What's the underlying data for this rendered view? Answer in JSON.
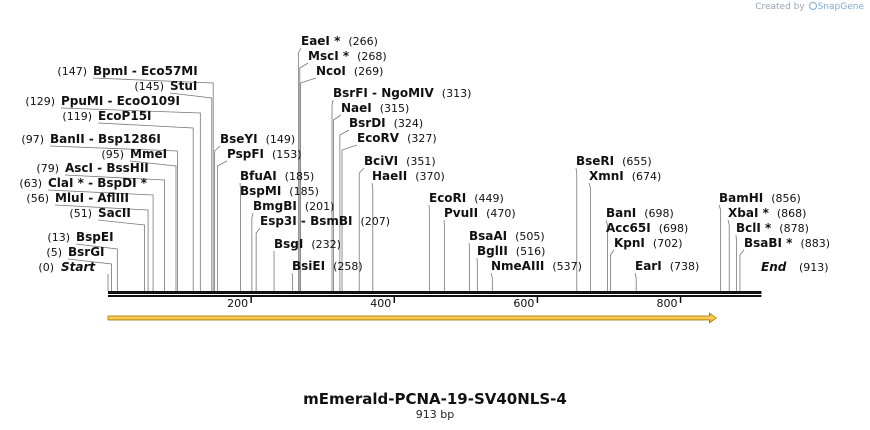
{
  "app_credit": {
    "created_by": "Created by",
    "brand": "SnapGene"
  },
  "sequence": {
    "name": "mEmerald-PCNA-19-SV40NLS-4",
    "length_label": "913 bp",
    "length": 913
  },
  "ends": {
    "start": {
      "label": "Start",
      "pos": 0
    },
    "end": {
      "label": "End",
      "pos": 913
    }
  },
  "ticks": [
    200,
    400,
    600,
    800
  ],
  "feature": {
    "name": "forward-arrow",
    "start": 0,
    "end": 850,
    "color": "#f2a900"
  },
  "enzymes": [
    {
      "name": "BsrGI",
      "pos": 5
    },
    {
      "name": "BspEI",
      "pos": 13
    },
    {
      "name": "SacII",
      "pos": 51
    },
    {
      "name": "MluI - AflIII",
      "pos": 56
    },
    {
      "name": "ClaI * - BspDI *",
      "pos": 63
    },
    {
      "name": "AscI - BssHII",
      "pos": 79
    },
    {
      "name": "MmeI",
      "pos": 95
    },
    {
      "name": "BanII - Bsp1286I",
      "pos": 97
    },
    {
      "name": "EcoP15I",
      "pos": 119
    },
    {
      "name": "PpuMI - EcoO109I",
      "pos": 129
    },
    {
      "name": "StuI",
      "pos": 145
    },
    {
      "name": "BpmI - Eco57MI",
      "pos": 147
    },
    {
      "name": "BseYI",
      "pos": 149
    },
    {
      "name": "PspFI",
      "pos": 153
    },
    {
      "name": "BfuAI",
      "pos": 185
    },
    {
      "name": "BspMI",
      "pos": 185
    },
    {
      "name": "BmgBI",
      "pos": 201
    },
    {
      "name": "Esp3I - BsmBI",
      "pos": 207
    },
    {
      "name": "BsgI",
      "pos": 232
    },
    {
      "name": "BsiEI",
      "pos": 258
    },
    {
      "name": "EaeI *",
      "pos": 266
    },
    {
      "name": "MscI *",
      "pos": 268
    },
    {
      "name": "NcoI",
      "pos": 269
    },
    {
      "name": "BsrFI - NgoMIV",
      "pos": 313
    },
    {
      "name": "NaeI",
      "pos": 315
    },
    {
      "name": "BsrDI",
      "pos": 324
    },
    {
      "name": "EcoRV",
      "pos": 327
    },
    {
      "name": "BciVI",
      "pos": 351
    },
    {
      "name": "HaeII",
      "pos": 370
    },
    {
      "name": "EcoRI",
      "pos": 449
    },
    {
      "name": "PvuII",
      "pos": 470
    },
    {
      "name": "BsaAI",
      "pos": 505
    },
    {
      "name": "BglII",
      "pos": 516
    },
    {
      "name": "NmeAIII",
      "pos": 537
    },
    {
      "name": "BseRI",
      "pos": 655
    },
    {
      "name": "XmnI",
      "pos": 674
    },
    {
      "name": "BanI",
      "pos": 698
    },
    {
      "name": "Acc65I",
      "pos": 698
    },
    {
      "name": "KpnI",
      "pos": 702
    },
    {
      "name": "EarI",
      "pos": 738
    },
    {
      "name": "BamHI",
      "pos": 856
    },
    {
      "name": "XbaI *",
      "pos": 868
    },
    {
      "name": "BclI *",
      "pos": 878
    },
    {
      "name": "BsaBI *",
      "pos": 883
    }
  ]
}
